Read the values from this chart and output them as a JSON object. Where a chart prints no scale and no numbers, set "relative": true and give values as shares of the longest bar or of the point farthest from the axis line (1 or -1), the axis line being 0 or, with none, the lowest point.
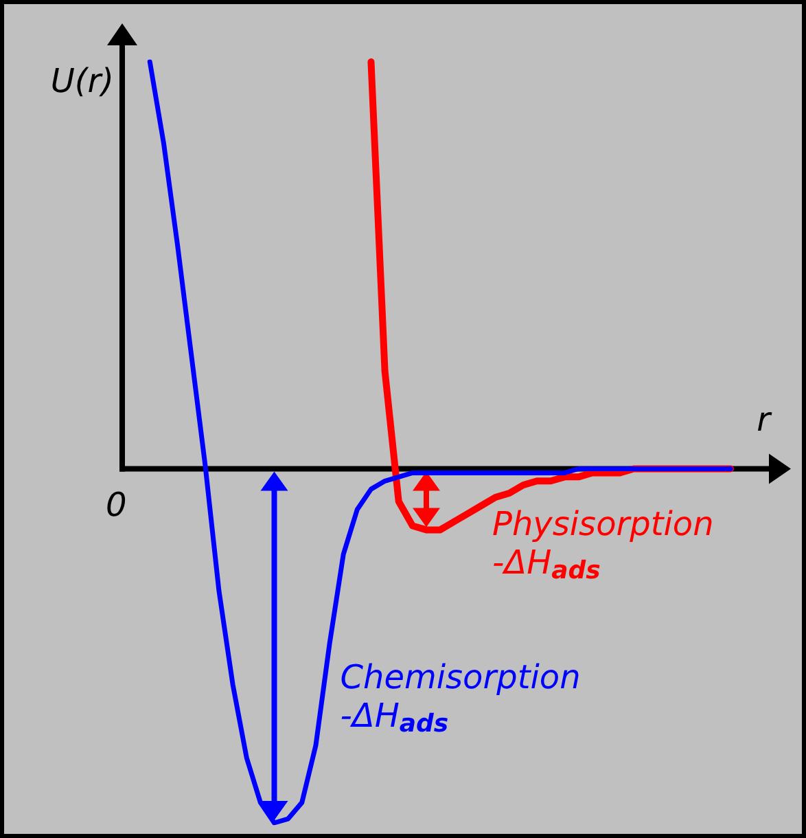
{
  "chart_data": {
    "type": "line",
    "relative": true,
    "ylabel": "U(r)",
    "xlabel": "r",
    "grid": false,
    "marker": "none",
    "line_style": "solid",
    "categories": [
      null,
      null,
      null,
      null,
      null,
      null,
      null,
      null,
      null,
      null,
      null,
      null,
      null,
      null,
      null,
      null,
      null,
      null,
      null,
      null,
      null,
      null,
      null,
      null,
      null,
      null,
      null,
      null,
      null,
      null,
      null,
      null,
      null,
      null,
      null,
      null,
      null,
      null,
      null,
      null,
      null,
      null,
      null,
      null,
      null
    ],
    "series": [
      {
        "color": "#ff0000",
        "values": [
          null,
          null,
          null,
          null,
          null,
          null,
          null,
          null,
          null,
          null,
          null,
          null,
          null,
          null,
          null,
          null,
          null,
          null,
          1.0,
          0.24,
          -0.08,
          -0.14,
          -0.15,
          -0.15,
          -0.13,
          -0.11,
          -0.09,
          -0.07,
          -0.06,
          -0.04,
          -0.03,
          -0.03,
          -0.02,
          -0.02,
          -0.01,
          -0.01,
          -0.01,
          0,
          0,
          0,
          0,
          0,
          0,
          0,
          0
        ]
      },
      {
        "color": "#0000ff",
        "values": [
          null,
          null,
          1.0,
          0.8,
          0.55,
          0.28,
          0.01,
          -0.3,
          -0.53,
          -0.71,
          -0.82,
          -0.87,
          -0.86,
          -0.82,
          -0.68,
          -0.43,
          -0.21,
          -0.1,
          -0.05,
          -0.03,
          -0.02,
          -0.01,
          -0.01,
          -0.01,
          -0.01,
          -0.01,
          -0.01,
          -0.01,
          -0.01,
          -0.01,
          -0.01,
          -0.01,
          -0.01,
          0,
          0,
          0,
          0,
          0,
          0,
          0,
          0,
          0,
          0,
          0,
          0
        ]
      }
    ],
    "annotations": [
      "Physisorption\n-ΔH$_{ads}$",
      "Chemisorption\n-ΔH$_{ads}$",
      "0"
    ]
  }
}
